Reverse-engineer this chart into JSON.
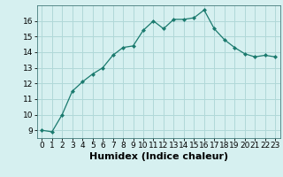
{
  "x": [
    0,
    1,
    2,
    3,
    4,
    5,
    6,
    7,
    8,
    9,
    10,
    11,
    12,
    13,
    14,
    15,
    16,
    17,
    18,
    19,
    20,
    21,
    22,
    23
  ],
  "y": [
    9.0,
    8.9,
    10.0,
    11.5,
    12.1,
    12.6,
    13.0,
    13.8,
    14.3,
    14.4,
    15.4,
    16.0,
    15.5,
    16.1,
    16.1,
    16.2,
    16.7,
    15.5,
    14.8,
    14.3,
    13.9,
    13.7,
    13.8,
    13.7
  ],
  "xlabel": "Humidex (Indice chaleur)",
  "line_color": "#1a7a6e",
  "marker": "D",
  "marker_size": 2,
  "bg_color": "#d6f0f0",
  "grid_color": "#b0d8d8",
  "xlim": [
    -0.5,
    23.5
  ],
  "ylim": [
    8.5,
    17.0
  ],
  "yticks": [
    9,
    10,
    11,
    12,
    13,
    14,
    15,
    16
  ],
  "xticks": [
    0,
    1,
    2,
    3,
    4,
    5,
    6,
    7,
    8,
    9,
    10,
    11,
    12,
    13,
    14,
    15,
    16,
    17,
    18,
    19,
    20,
    21,
    22,
    23
  ],
  "tick_fontsize": 6.5,
  "xlabel_fontsize": 8
}
